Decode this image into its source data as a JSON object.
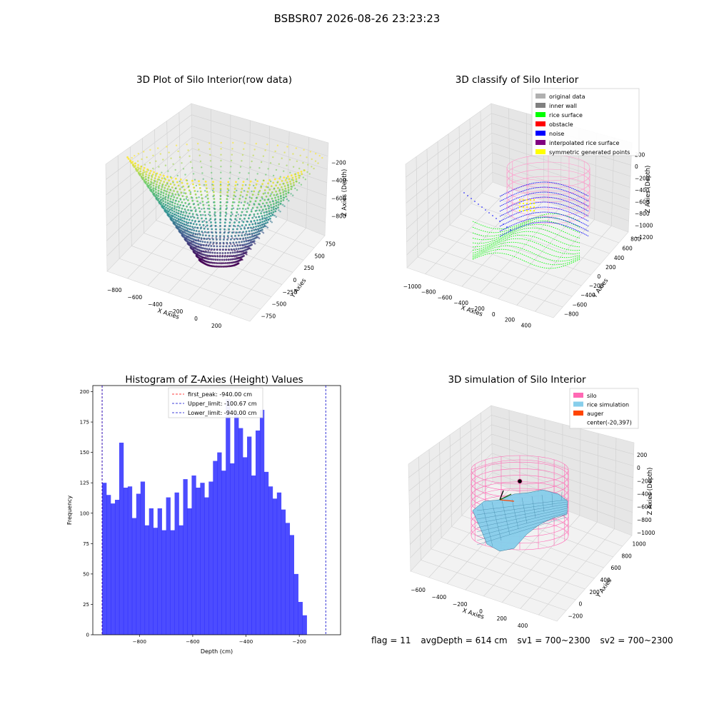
{
  "suptitle": "BSBSR07 2026-08-26 23:23:23",
  "footer": {
    "flag": "flag = 11",
    "avg_depth": "avgDepth = 614 cm",
    "sv1": "sv1 = 700~2300",
    "sv2": "sv2 = 700~2300"
  },
  "chart_data": [
    {
      "id": "raw",
      "type": "scatter",
      "title": "3D Plot of Silo Interior(row data)",
      "xlabel": "X Axies",
      "ylabel": "Y Axies",
      "zlabel": "Z Axies (Depth)",
      "x_ticks": [
        "−800",
        "−600",
        "−400",
        "−200",
        "0",
        "200",
        "400"
      ],
      "y_ticks": [
        "−750",
        "−500",
        "−250",
        "0",
        "250",
        "500",
        "750"
      ],
      "z_ticks": [
        "−800",
        "−600",
        "−400",
        "−200"
      ],
      "colormap": "viridis"
    },
    {
      "id": "classify",
      "type": "scatter",
      "title": "3D classify of Silo Interior",
      "xlabel": "X Axies",
      "ylabel": "Y Axies",
      "zlabel": "Z Axies (Depth)",
      "x_ticks": [
        "−1000",
        "−800",
        "−600",
        "−400",
        "−200",
        "0",
        "200",
        "400",
        "600"
      ],
      "y_ticks": [
        "−800",
        "−600",
        "−400",
        "−200",
        "0",
        "200",
        "400",
        "600",
        "800"
      ],
      "z_ticks": [
        "−1200",
        "−1000",
        "−800",
        "−600",
        "−400",
        "−200",
        "0",
        "200"
      ],
      "legend_position": "top-right",
      "legend": [
        {
          "label": "original data",
          "color": "#b0b0b0"
        },
        {
          "label": "inner wall",
          "color": "#808080"
        },
        {
          "label": "rice surface",
          "color": "#00ff00"
        },
        {
          "label": "obstacle",
          "color": "#ff0000"
        },
        {
          "label": "noise",
          "color": "#0000ff"
        },
        {
          "label": "interpolated rice surface",
          "color": "#800080"
        },
        {
          "label": "symmetric generated points",
          "color": "#ffff00"
        }
      ]
    },
    {
      "id": "hist",
      "type": "bar",
      "title": "Histogram of Z-Axies (Height) Values",
      "xlabel": "Depth (cm)",
      "ylabel": "Frequency",
      "xlim": [
        -975,
        -45
      ],
      "ylim": [
        0,
        205
      ],
      "x_ticks": [
        -800,
        -600,
        -400,
        -200
      ],
      "x_tick_labels": [
        "−800",
        "−600",
        "−400",
        "−200"
      ],
      "y_ticks": [
        0,
        25,
        50,
        75,
        100,
        125,
        150,
        175,
        200
      ],
      "bin_start": -940,
      "bin_width": 16,
      "values": [
        125,
        115,
        108,
        111,
        158,
        121,
        122,
        96,
        116,
        126,
        90,
        104,
        88,
        104,
        86,
        113,
        86,
        117,
        90,
        128,
        104,
        131,
        121,
        125,
        113,
        126,
        143,
        150,
        135,
        194,
        141,
        182,
        170,
        146,
        163,
        131,
        168,
        185,
        134,
        122,
        112,
        117,
        103,
        92,
        82,
        50,
        27,
        16
      ],
      "bar_color": "#0000ff",
      "bar_opacity": 0.7,
      "lines": [
        {
          "label": "first_peak: -940.00 cm",
          "value": -940.0,
          "color": "#ff0000"
        },
        {
          "label": "Upper_limit: -100.67 cm",
          "value": -100.67,
          "color": "#0000cc"
        },
        {
          "label": "Lower_limit: -940.00 cm",
          "value": -940.0,
          "color": "#0000cc"
        }
      ],
      "legend_position": "top-center"
    },
    {
      "id": "sim",
      "type": "scatter",
      "title": "3D simulation of Silo Interior",
      "xlabel": "X Axies",
      "ylabel": "Y Axies",
      "zlabel": "Z Axies (Depth)",
      "x_ticks": [
        "−600",
        "−400",
        "−200",
        "0",
        "200",
        "400",
        "600"
      ],
      "y_ticks": [
        "−200",
        "0",
        "200",
        "400",
        "600",
        "800",
        "1000"
      ],
      "z_ticks": [
        "−1000",
        "−800",
        "−600",
        "−400",
        "−200",
        "0",
        "200"
      ],
      "legend_position": "top-right",
      "legend": [
        {
          "label": "silo",
          "color": "#ff69b4"
        },
        {
          "label": "rice simulation",
          "color": "#87ceeb"
        },
        {
          "label": "auger",
          "color": "#ff4500"
        },
        {
          "label": "center(-20,397)",
          "color": ""
        }
      ]
    }
  ]
}
